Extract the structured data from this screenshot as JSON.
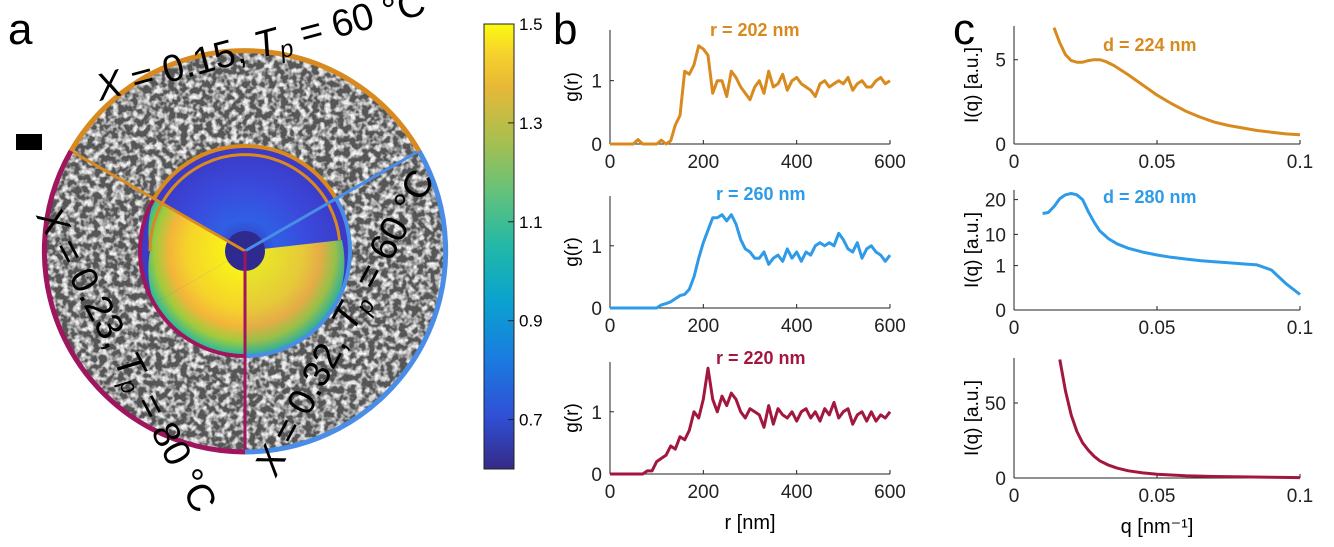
{
  "figure": {
    "panel_labels": [
      "a",
      "b",
      "c"
    ],
    "colors": {
      "orange": "#D98A1F",
      "blue": "#2E9BE8",
      "crimson": "#A3173F",
      "outer_blue": "#4A8DE6",
      "outer_magenta": "#A0165E"
    },
    "panel_a": {
      "sectors": [
        {
          "name": "X = 0.15, Tp = 60 °C",
          "label_x": "X = 0.15,",
          "label_t": "T",
          "label_sub": "p",
          "label_rest": "= 60 °C",
          "color": "#D98A1F"
        },
        {
          "name": "X = 0.32, Tp = 60 °C",
          "label_x": "X = 0.32,",
          "label_t": "T",
          "label_sub": "p",
          "label_rest": "= 60 °C",
          "color": "#4A8DE6"
        },
        {
          "name": "X = 0.23, Tp = 80 °C",
          "label_x": "X = 0.23,",
          "label_t": "T",
          "label_sub": "p",
          "label_rest": "= 80 °C",
          "color": "#A0165E"
        }
      ]
    },
    "colorbar": {
      "ticks": [
        "1.5",
        "1.3",
        "1.1",
        "0.9",
        "0.7"
      ],
      "range": [
        0.6,
        1.5
      ],
      "colormap": "parula"
    }
  },
  "chart_data": [
    {
      "type": "line",
      "panel": "b1",
      "xlabel": "",
      "ylabel": "g(r)",
      "xlim": [
        0,
        600
      ],
      "ylim": [
        0,
        1.8
      ],
      "xticks": [
        "0",
        "200",
        "400",
        "600"
      ],
      "yticks": [
        "0",
        "1"
      ],
      "annotation": "r = 202 nm",
      "color": "#D98A1F",
      "x": [
        0,
        10,
        20,
        30,
        40,
        50,
        60,
        70,
        80,
        90,
        100,
        110,
        120,
        130,
        140,
        150,
        160,
        170,
        180,
        190,
        200,
        210,
        220,
        230,
        240,
        250,
        260,
        270,
        280,
        290,
        300,
        310,
        320,
        330,
        340,
        350,
        360,
        370,
        380,
        390,
        400,
        410,
        420,
        430,
        440,
        450,
        460,
        470,
        480,
        490,
        500,
        510,
        520,
        530,
        540,
        550,
        560,
        570,
        580,
        590,
        600
      ],
      "y": [
        0,
        0,
        0,
        0,
        0,
        0,
        0.07,
        0,
        0,
        0,
        0,
        0.06,
        0,
        0.05,
        0.3,
        0.45,
        1.15,
        1.1,
        1.25,
        1.55,
        1.5,
        1.4,
        0.8,
        1.0,
        1.0,
        0.75,
        1.15,
        1.05,
        0.9,
        0.8,
        0.7,
        0.9,
        1.0,
        0.8,
        1.15,
        0.9,
        0.95,
        1.1,
        0.85,
        1.0,
        1.05,
        0.95,
        0.9,
        0.85,
        0.75,
        0.95,
        1.0,
        0.9,
        0.95,
        1.0,
        0.95,
        1.05,
        0.85,
        0.95,
        1.0,
        0.9,
        0.9,
        1.0,
        1.05,
        0.95,
        1.0
      ]
    },
    {
      "type": "line",
      "panel": "b2",
      "xlabel": "",
      "ylabel": "g(r)",
      "xlim": [
        0,
        600
      ],
      "ylim": [
        0,
        1.8
      ],
      "xticks": [
        "0",
        "200",
        "400",
        "600"
      ],
      "yticks": [
        "0",
        "1"
      ],
      "annotation": "r = 260 nm",
      "color": "#2E9BE8",
      "x": [
        0,
        10,
        20,
        30,
        40,
        50,
        60,
        70,
        80,
        90,
        100,
        110,
        120,
        130,
        140,
        150,
        160,
        170,
        180,
        190,
        200,
        210,
        220,
        230,
        240,
        250,
        260,
        270,
        280,
        290,
        300,
        310,
        320,
        330,
        340,
        350,
        360,
        370,
        380,
        390,
        400,
        410,
        420,
        430,
        440,
        450,
        460,
        470,
        480,
        490,
        500,
        510,
        520,
        530,
        540,
        550,
        560,
        570,
        580,
        590,
        600
      ],
      "y": [
        0,
        0,
        0,
        0,
        0,
        0,
        0,
        0,
        0,
        0,
        0,
        0.05,
        0.07,
        0.1,
        0.15,
        0.2,
        0.22,
        0.3,
        0.5,
        0.8,
        1.05,
        1.25,
        1.45,
        1.45,
        1.5,
        1.4,
        1.5,
        1.35,
        1.1,
        0.95,
        0.9,
        0.8,
        0.8,
        0.9,
        0.7,
        0.8,
        0.85,
        0.75,
        0.95,
        0.8,
        0.9,
        0.75,
        0.9,
        0.85,
        1.0,
        1.05,
        1.0,
        1.05,
        1.0,
        1.2,
        1.1,
        0.95,
        0.9,
        1.05,
        0.8,
        0.95,
        1.0,
        0.9,
        0.85,
        0.75,
        0.85
      ]
    },
    {
      "type": "line",
      "panel": "b3",
      "xlabel": "r [nm]",
      "ylabel": "g(r)",
      "xlim": [
        0,
        600
      ],
      "ylim": [
        0,
        1.8
      ],
      "xticks": [
        "0",
        "200",
        "400",
        "600"
      ],
      "yticks": [
        "0",
        "1"
      ],
      "annotation": "r = 220 nm",
      "color": "#A3173F",
      "x": [
        0,
        10,
        20,
        30,
        40,
        50,
        60,
        70,
        80,
        90,
        100,
        110,
        120,
        130,
        140,
        150,
        160,
        170,
        180,
        190,
        200,
        210,
        220,
        230,
        240,
        250,
        260,
        270,
        280,
        290,
        300,
        310,
        320,
        330,
        340,
        350,
        360,
        370,
        380,
        390,
        400,
        410,
        420,
        430,
        440,
        450,
        460,
        470,
        480,
        490,
        500,
        510,
        520,
        530,
        540,
        550,
        560,
        570,
        580,
        590,
        600
      ],
      "y": [
        0,
        0,
        0,
        0,
        0,
        0,
        0,
        0,
        0.05,
        0.05,
        0.2,
        0.25,
        0.3,
        0.45,
        0.4,
        0.6,
        0.55,
        0.7,
        1.0,
        0.9,
        1.2,
        1.7,
        1.2,
        1.0,
        1.25,
        1.1,
        1.3,
        1.2,
        1.0,
        0.9,
        1.05,
        1.0,
        0.95,
        0.75,
        1.1,
        0.8,
        1.05,
        0.95,
        0.9,
        1.0,
        0.85,
        1.0,
        1.05,
        0.9,
        1.0,
        0.85,
        1.05,
        0.95,
        1.15,
        0.9,
        1.0,
        1.05,
        0.8,
        0.95,
        1.0,
        0.85,
        1.0,
        0.85,
        0.95,
        0.9,
        1.0
      ]
    },
    {
      "type": "line",
      "panel": "c1",
      "xlabel": "",
      "ylabel": "I(q) [a.u.]",
      "xlim": [
        0,
        0.1
      ],
      "ylim": [
        0,
        7
      ],
      "xticks": [
        "0",
        "0.05",
        "0.1"
      ],
      "yticks": [
        "0",
        "5"
      ],
      "annotation": "d = 224 nm",
      "color": "#D98A1F",
      "x": [
        0.014,
        0.016,
        0.018,
        0.02,
        0.022,
        0.024,
        0.026,
        0.028,
        0.03,
        0.032,
        0.035,
        0.04,
        0.045,
        0.05,
        0.055,
        0.06,
        0.065,
        0.07,
        0.075,
        0.08,
        0.085,
        0.09,
        0.095,
        0.1
      ],
      "y": [
        6.9,
        6.0,
        5.3,
        4.95,
        4.85,
        4.85,
        4.95,
        5.0,
        5.0,
        4.9,
        4.65,
        4.1,
        3.5,
        2.9,
        2.4,
        1.95,
        1.6,
        1.3,
        1.1,
        0.95,
        0.8,
        0.7,
        0.6,
        0.55
      ]
    },
    {
      "type": "line",
      "panel": "c2",
      "xlabel": "",
      "ylabel": "I(q) [a.u.]",
      "xlim": [
        0,
        0.1
      ],
      "ylim": [
        0,
        25
      ],
      "xticks": [
        "0",
        "0.05",
        "0.1"
      ],
      "yticks": [
        "0",
        "1",
        "10",
        "20"
      ],
      "annotation": "d = 280 nm",
      "color": "#2E9BE8",
      "x": [
        0.01,
        0.012,
        0.014,
        0.016,
        0.018,
        0.02,
        0.022,
        0.024,
        0.026,
        0.028,
        0.03,
        0.033,
        0.036,
        0.04,
        0.045,
        0.05,
        0.055,
        0.06,
        0.065,
        0.07,
        0.075,
        0.08,
        0.085,
        0.09,
        0.095,
        0.1
      ],
      "y": [
        16.0,
        16.3,
        18.0,
        20.5,
        22.5,
        23.2,
        22.5,
        20.0,
        16.5,
        13.5,
        11.0,
        8.8,
        7.3,
        6.0,
        4.9,
        4.05,
        3.4,
        2.9,
        2.45,
        2.1,
        1.8,
        1.5,
        1.2,
        0.9,
        0.6,
        0.35
      ]
    },
    {
      "type": "line",
      "panel": "c3",
      "xlabel": "q [nm⁻¹]",
      "ylabel": "I(q) [a.u.]",
      "xlim": [
        0,
        0.1
      ],
      "ylim": [
        0,
        80
      ],
      "xticks": [
        "0",
        "0.05",
        "0.1"
      ],
      "yticks": [
        "0",
        "50"
      ],
      "annotation": "",
      "color": "#A3173F",
      "x": [
        0.016,
        0.018,
        0.02,
        0.022,
        0.024,
        0.026,
        0.028,
        0.03,
        0.033,
        0.036,
        0.04,
        0.045,
        0.05,
        0.06,
        0.07,
        0.08,
        0.09,
        0.1
      ],
      "y": [
        79,
        58,
        42,
        31,
        23.5,
        18.5,
        14.5,
        11.5,
        8.6,
        6.6,
        4.8,
        3.4,
        2.5,
        1.5,
        1.0,
        0.7,
        0.5,
        0.3
      ]
    }
  ]
}
